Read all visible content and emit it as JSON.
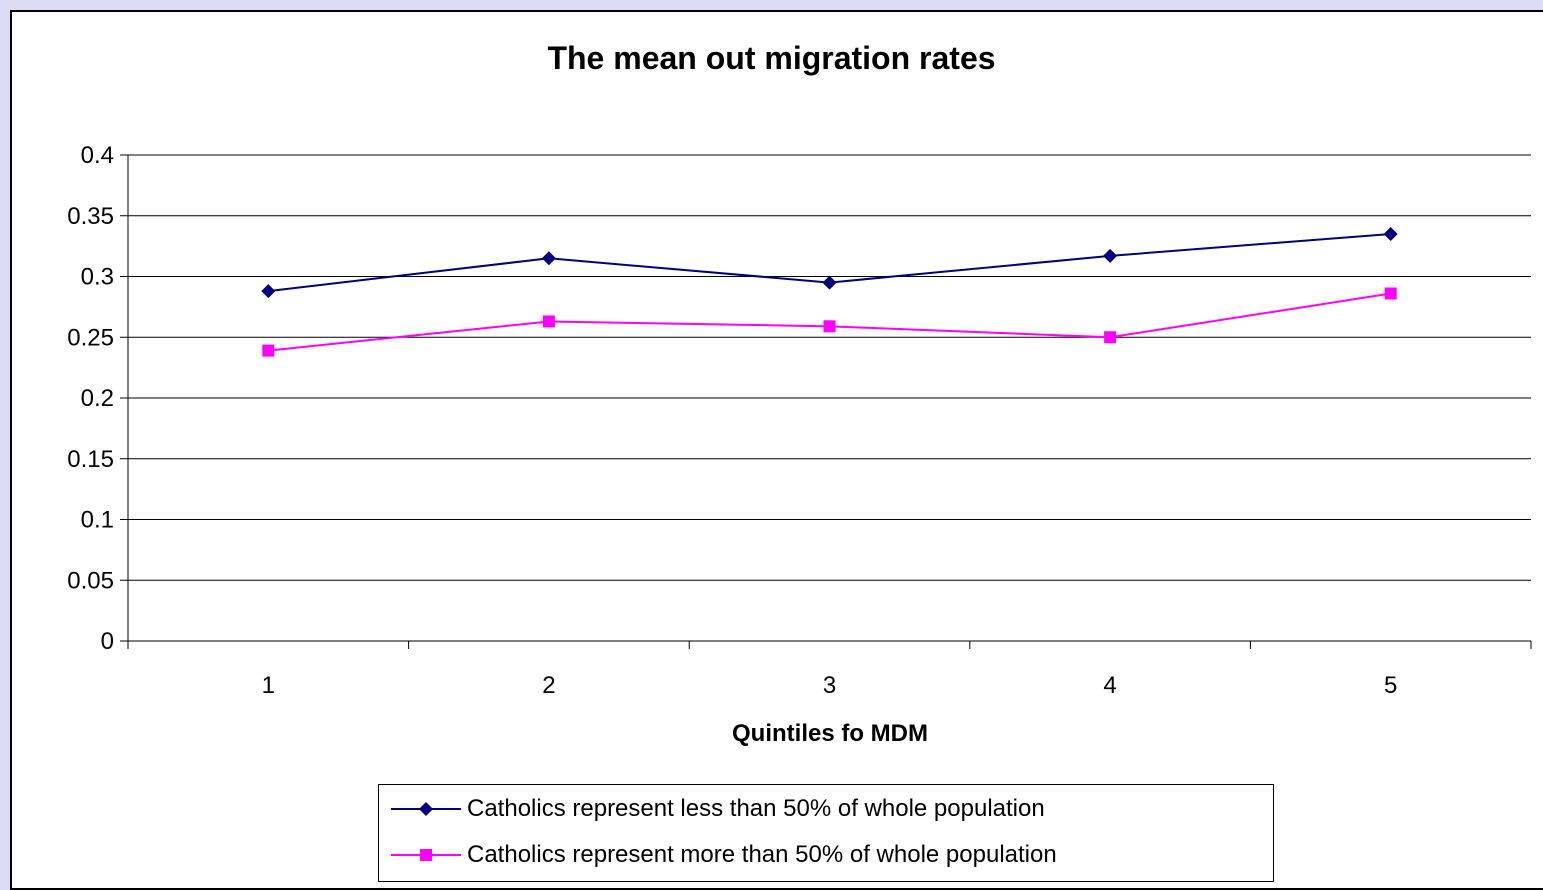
{
  "chart_data": {
    "type": "line",
    "title": "The mean out migration rates",
    "xlabel": "Quintiles fo MDM",
    "ylabel": "",
    "categories": [
      "1",
      "2",
      "3",
      "4",
      "5"
    ],
    "ylim": [
      0,
      0.4
    ],
    "yticks": [
      "0",
      "0.05",
      "0.1",
      "0.15",
      "0.2",
      "0.25",
      "0.3",
      "0.35",
      "0.4"
    ],
    "grid": true,
    "legend_position": "bottom",
    "series": [
      {
        "name": "Catholics represent less than 50% of whole population",
        "values": [
          0.288,
          0.315,
          0.295,
          0.317,
          0.335
        ],
        "color": "#000080",
        "marker": "diamond"
      },
      {
        "name": "Catholics represent more than 50% of whole population",
        "values": [
          0.239,
          0.263,
          0.259,
          0.25,
          0.286
        ],
        "color": "#ff00ff",
        "marker": "square"
      }
    ]
  }
}
